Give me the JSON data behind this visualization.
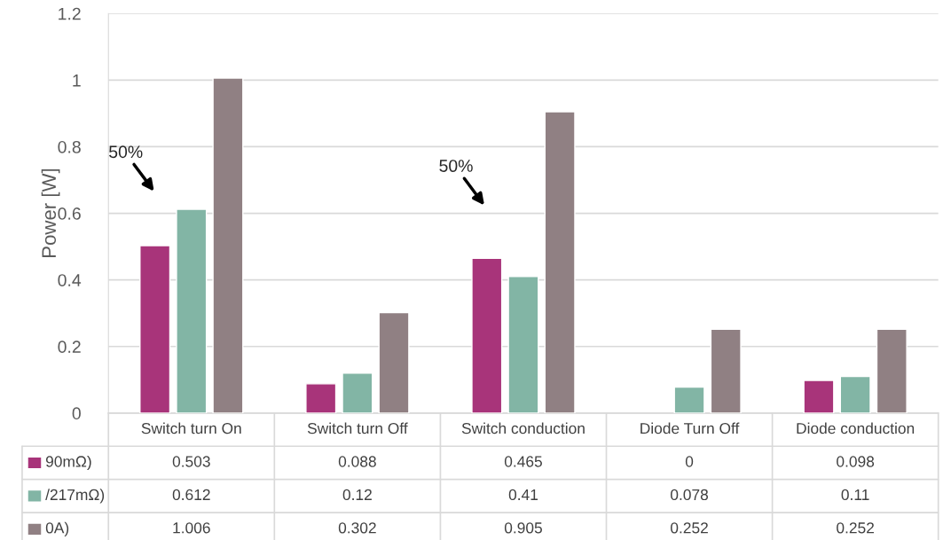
{
  "chart_data": {
    "type": "bar",
    "ylabel": "Power [W]",
    "categories": [
      "Switch turn On",
      "Switch turn Off",
      "Switch conduction",
      "Diode Turn Off",
      "Diode conduction"
    ],
    "series": [
      {
        "name": "90mΩ)",
        "color": "#a8347a",
        "values": [
          0.503,
          0.088,
          0.465,
          0,
          0.098
        ]
      },
      {
        "name": "/217mΩ)",
        "color": "#82b5a5",
        "values": [
          0.612,
          0.12,
          0.41,
          0.078,
          0.11
        ]
      },
      {
        "name": "0A)",
        "color": "#908083",
        "values": [
          1.006,
          0.302,
          0.905,
          0.252,
          0.252
        ]
      }
    ],
    "ylim": [
      0,
      1.2
    ],
    "yticks": [
      0,
      0.2,
      0.4,
      0.6,
      0.8,
      1,
      1.2
    ],
    "grid": "y",
    "data_labels": true,
    "legend": "bottom left",
    "annotations": [
      "50%",
      "50%"
    ]
  }
}
